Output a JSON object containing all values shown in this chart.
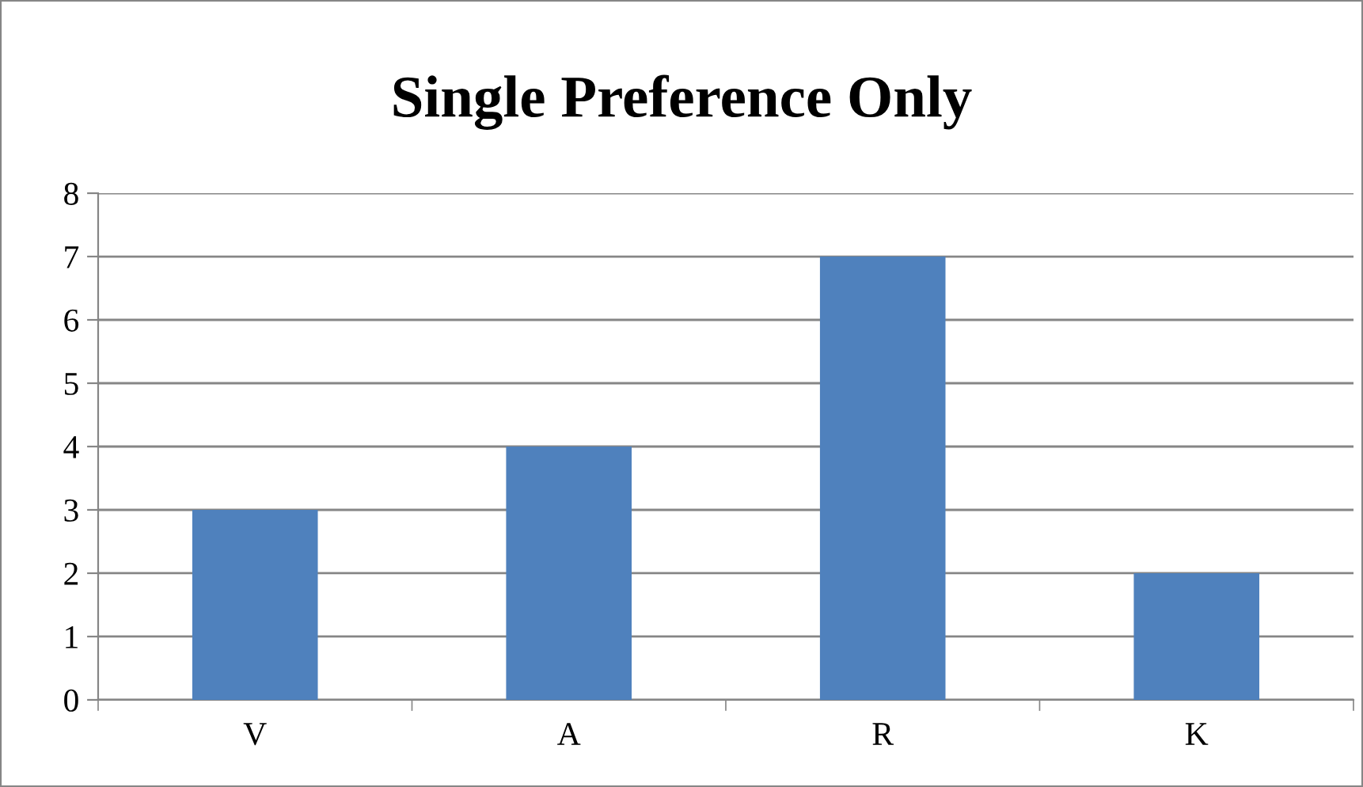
{
  "chart_data": {
    "type": "bar",
    "title": "Single Preference Only",
    "categories": [
      "V",
      "A",
      "R",
      "K"
    ],
    "values": [
      3,
      4,
      7,
      2
    ],
    "color": "#4f81bd",
    "ylim": [
      0,
      8
    ],
    "yticks": [
      0,
      1,
      2,
      3,
      4,
      5,
      6,
      7,
      8
    ],
    "grid": "y",
    "legend": false
  }
}
